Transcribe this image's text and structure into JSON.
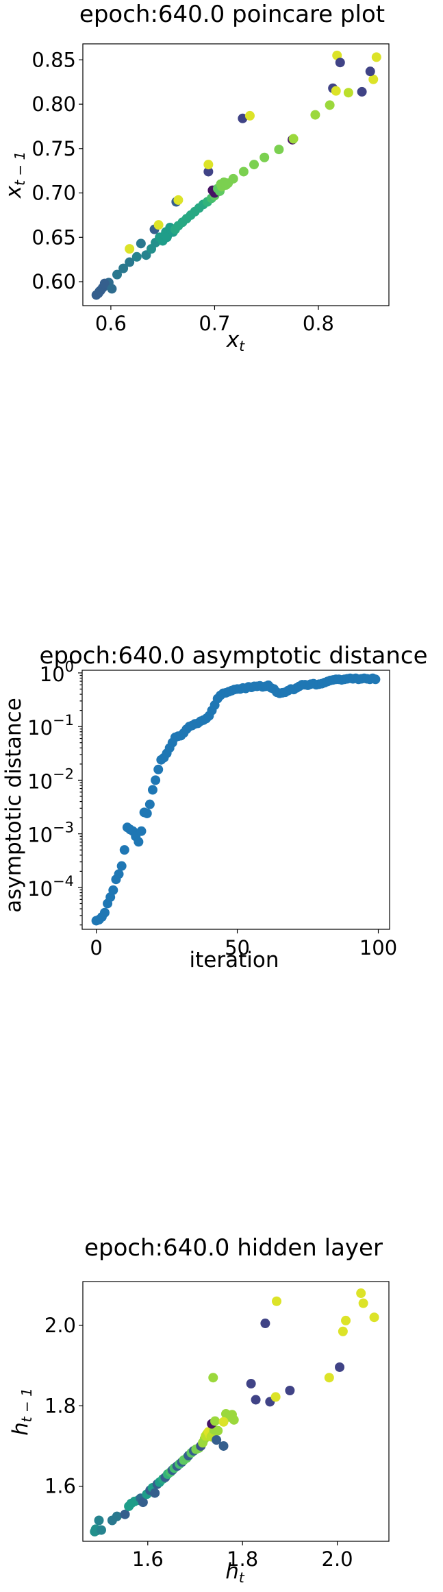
{
  "chart_data": [
    {
      "type": "scatter",
      "title": "epoch:640.0 poincare plot",
      "xlabel": "x_t",
      "ylabel": "x_{t-1}",
      "xlim": [
        0.573,
        0.868
      ],
      "ylim": [
        0.573,
        0.868
      ],
      "xticks": [
        0.6,
        0.7,
        0.8
      ],
      "yticks": [
        0.6,
        0.65,
        0.7,
        0.75,
        0.8,
        0.85
      ],
      "xtick_labels": [
        "0.6",
        "0.7",
        "0.8"
      ],
      "ytick_labels": [
        "0.60",
        "0.65",
        "0.70",
        "0.75",
        "0.80",
        "0.85"
      ],
      "colormap": "viridis",
      "points": [
        {
          "x": 0.586,
          "y": 0.585,
          "c": 0.3
        },
        {
          "x": 0.588,
          "y": 0.587,
          "c": 0.3
        },
        {
          "x": 0.589,
          "y": 0.589,
          "c": 0.3
        },
        {
          "x": 0.59,
          "y": 0.59,
          "c": 0.3
        },
        {
          "x": 0.592,
          "y": 0.593,
          "c": 0.3
        },
        {
          "x": 0.595,
          "y": 0.596,
          "c": 0.3
        },
        {
          "x": 0.598,
          "y": 0.599,
          "c": 0.35
        },
        {
          "x": 0.594,
          "y": 0.598,
          "c": 0.3
        },
        {
          "x": 0.601,
          "y": 0.592,
          "c": 0.35
        },
        {
          "x": 0.606,
          "y": 0.608,
          "c": 0.4
        },
        {
          "x": 0.612,
          "y": 0.615,
          "c": 0.4
        },
        {
          "x": 0.618,
          "y": 0.622,
          "c": 0.4
        },
        {
          "x": 0.625,
          "y": 0.628,
          "c": 0.45
        },
        {
          "x": 0.618,
          "y": 0.637,
          "c": 0.95
        },
        {
          "x": 0.629,
          "y": 0.643,
          "c": 0.4
        },
        {
          "x": 0.634,
          "y": 0.63,
          "c": 0.45
        },
        {
          "x": 0.639,
          "y": 0.637,
          "c": 0.5
        },
        {
          "x": 0.643,
          "y": 0.644,
          "c": 0.5
        },
        {
          "x": 0.647,
          "y": 0.65,
          "c": 0.55
        },
        {
          "x": 0.642,
          "y": 0.659,
          "c": 0.3
        },
        {
          "x": 0.646,
          "y": 0.664,
          "c": 0.95
        },
        {
          "x": 0.65,
          "y": 0.646,
          "c": 0.55
        },
        {
          "x": 0.652,
          "y": 0.652,
          "c": 0.55
        },
        {
          "x": 0.653,
          "y": 0.656,
          "c": 0.55
        },
        {
          "x": 0.655,
          "y": 0.653,
          "c": 0.55
        },
        {
          "x": 0.656,
          "y": 0.658,
          "c": 0.55
        },
        {
          "x": 0.657,
          "y": 0.661,
          "c": 0.55
        },
        {
          "x": 0.658,
          "y": 0.66,
          "c": 0.55
        },
        {
          "x": 0.654,
          "y": 0.65,
          "c": 0.55
        },
        {
          "x": 0.66,
          "y": 0.656,
          "c": 0.55
        },
        {
          "x": 0.662,
          "y": 0.659,
          "c": 0.6
        },
        {
          "x": 0.665,
          "y": 0.663,
          "c": 0.6
        },
        {
          "x": 0.669,
          "y": 0.667,
          "c": 0.6
        },
        {
          "x": 0.673,
          "y": 0.671,
          "c": 0.6
        },
        {
          "x": 0.677,
          "y": 0.675,
          "c": 0.6
        },
        {
          "x": 0.681,
          "y": 0.679,
          "c": 0.6
        },
        {
          "x": 0.685,
          "y": 0.683,
          "c": 0.6
        },
        {
          "x": 0.689,
          "y": 0.687,
          "c": 0.6
        },
        {
          "x": 0.663,
          "y": 0.69,
          "c": 0.3
        },
        {
          "x": 0.665,
          "y": 0.692,
          "c": 0.95
        },
        {
          "x": 0.693,
          "y": 0.69,
          "c": 0.65
        },
        {
          "x": 0.697,
          "y": 0.694,
          "c": 0.7
        },
        {
          "x": 0.7,
          "y": 0.697,
          "c": 0.75
        },
        {
          "x": 0.698,
          "y": 0.703,
          "c": 0.05
        },
        {
          "x": 0.7,
          "y": 0.7,
          "c": 0.05
        },
        {
          "x": 0.703,
          "y": 0.705,
          "c": 0.75
        },
        {
          "x": 0.705,
          "y": 0.702,
          "c": 0.75
        },
        {
          "x": 0.707,
          "y": 0.707,
          "c": 0.8
        },
        {
          "x": 0.706,
          "y": 0.71,
          "c": 0.8
        },
        {
          "x": 0.709,
          "y": 0.712,
          "c": 0.8
        },
        {
          "x": 0.711,
          "y": 0.709,
          "c": 0.8
        },
        {
          "x": 0.713,
          "y": 0.711,
          "c": 0.8
        },
        {
          "x": 0.694,
          "y": 0.724,
          "c": 0.2
        },
        {
          "x": 0.694,
          "y": 0.732,
          "c": 0.95
        },
        {
          "x": 0.718,
          "y": 0.716,
          "c": 0.8
        },
        {
          "x": 0.728,
          "y": 0.724,
          "c": 0.8
        },
        {
          "x": 0.738,
          "y": 0.732,
          "c": 0.8
        },
        {
          "x": 0.748,
          "y": 0.74,
          "c": 0.8
        },
        {
          "x": 0.762,
          "y": 0.749,
          "c": 0.8
        },
        {
          "x": 0.775,
          "y": 0.76,
          "c": 0.05
        },
        {
          "x": 0.776,
          "y": 0.761,
          "c": 0.85
        },
        {
          "x": 0.727,
          "y": 0.784,
          "c": 0.2
        },
        {
          "x": 0.734,
          "y": 0.787,
          "c": 0.95
        },
        {
          "x": 0.797,
          "y": 0.788,
          "c": 0.85
        },
        {
          "x": 0.811,
          "y": 0.799,
          "c": 0.85
        },
        {
          "x": 0.814,
          "y": 0.818,
          "c": 0.2
        },
        {
          "x": 0.817,
          "y": 0.815,
          "c": 0.95
        },
        {
          "x": 0.829,
          "y": 0.813,
          "c": 0.9
        },
        {
          "x": 0.842,
          "y": 0.814,
          "c": 0.2
        },
        {
          "x": 0.853,
          "y": 0.828,
          "c": 0.95
        },
        {
          "x": 0.85,
          "y": 0.837,
          "c": 0.2
        },
        {
          "x": 0.818,
          "y": 0.855,
          "c": 0.95
        },
        {
          "x": 0.821,
          "y": 0.847,
          "c": 0.2
        },
        {
          "x": 0.856,
          "y": 0.853,
          "c": 0.95
        }
      ]
    },
    {
      "type": "scatter",
      "title": "epoch:640.0 asymptotic distance",
      "xlabel": "iteration",
      "ylabel": "asymptotic distance",
      "xlim": [
        -5,
        104
      ],
      "ylim_log10": [
        -4.78,
        0.05
      ],
      "yscale": "log",
      "xticks": [
        0,
        50,
        100
      ],
      "xtick_labels": [
        "0",
        "50",
        "100"
      ],
      "yticks_log10": [
        -4,
        -3,
        -2,
        -1,
        0
      ],
      "ytick_labels": [
        "10^-4",
        "10^-3",
        "10^-2",
        "10^-1",
        "10^0"
      ],
      "color": "#1f77b4",
      "x": [
        0,
        1,
        2,
        3,
        4,
        5,
        6,
        7,
        8,
        9,
        10,
        11,
        12,
        13,
        14,
        15,
        16,
        17,
        18,
        19,
        20,
        21,
        22,
        23,
        24,
        25,
        26,
        27,
        28,
        29,
        30,
        31,
        32,
        33,
        34,
        35,
        36,
        37,
        38,
        39,
        40,
        41,
        42,
        43,
        44,
        45,
        46,
        47,
        48,
        49,
        50,
        51,
        52,
        53,
        54,
        55,
        56,
        57,
        58,
        59,
        60,
        61,
        62,
        63,
        64,
        65,
        66,
        67,
        68,
        69,
        70,
        71,
        72,
        73,
        74,
        75,
        76,
        77,
        78,
        79,
        80,
        81,
        82,
        83,
        84,
        85,
        86,
        87,
        88,
        89,
        90,
        91,
        92,
        93,
        94,
        95,
        96,
        97,
        98,
        99
      ],
      "y_log10": [
        -4.62,
        -4.6,
        -4.55,
        -4.47,
        -4.3,
        -4.18,
        -4.05,
        -3.85,
        -3.75,
        -3.6,
        -3.3,
        -2.88,
        -2.92,
        -2.95,
        -3.05,
        -3.15,
        -2.95,
        -2.6,
        -2.62,
        -2.45,
        -2.18,
        -2.0,
        -1.8,
        -1.62,
        -1.58,
        -1.5,
        -1.4,
        -1.3,
        -1.2,
        -1.18,
        -1.17,
        -1.12,
        -1.05,
        -1.0,
        -0.98,
        -0.95,
        -0.94,
        -0.9,
        -0.88,
        -0.85,
        -0.8,
        -0.7,
        -0.6,
        -0.48,
        -0.42,
        -0.38,
        -0.37,
        -0.35,
        -0.33,
        -0.31,
        -0.3,
        -0.3,
        -0.28,
        -0.29,
        -0.26,
        -0.27,
        -0.25,
        -0.25,
        -0.24,
        -0.26,
        -0.25,
        -0.23,
        -0.28,
        -0.3,
        -0.36,
        -0.38,
        -0.37,
        -0.36,
        -0.33,
        -0.3,
        -0.31,
        -0.28,
        -0.25,
        -0.22,
        -0.22,
        -0.23,
        -0.21,
        -0.2,
        -0.22,
        -0.21,
        -0.2,
        -0.18,
        -0.16,
        -0.14,
        -0.13,
        -0.12,
        -0.12,
        -0.13,
        -0.12,
        -0.11,
        -0.1,
        -0.11,
        -0.1,
        -0.12,
        -0.11,
        -0.1,
        -0.11,
        -0.12,
        -0.1,
        -0.12
      ]
    },
    {
      "type": "scatter",
      "title": "epoch:640.0 hidden layer",
      "xlabel": "h_t",
      "ylabel": "h_{t-1}",
      "xlim": [
        1.463,
        2.109
      ],
      "ylim": [
        1.463,
        2.109
      ],
      "xticks": [
        1.6,
        1.8,
        2.0
      ],
      "yticks": [
        1.6,
        1.8,
        2.0
      ],
      "xtick_labels": [
        "1.6",
        "1.8",
        "2.0"
      ],
      "ytick_labels": [
        "1.6",
        "1.8",
        "2.0"
      ],
      "colormap": "viridis",
      "points": [
        {
          "x": 1.488,
          "y": 1.487,
          "c": 0.5
        },
        {
          "x": 1.49,
          "y": 1.493,
          "c": 0.5
        },
        {
          "x": 1.493,
          "y": 1.49,
          "c": 0.5
        },
        {
          "x": 1.502,
          "y": 1.491,
          "c": 0.45
        },
        {
          "x": 1.497,
          "y": 1.515,
          "c": 0.45
        },
        {
          "x": 1.525,
          "y": 1.515,
          "c": 0.4
        },
        {
          "x": 1.535,
          "y": 1.525,
          "c": 0.4
        },
        {
          "x": 1.552,
          "y": 1.53,
          "c": 0.3
        },
        {
          "x": 1.56,
          "y": 1.55,
          "c": 0.55
        },
        {
          "x": 1.565,
          "y": 1.557,
          "c": 0.55
        },
        {
          "x": 1.572,
          "y": 1.562,
          "c": 0.55
        },
        {
          "x": 1.58,
          "y": 1.565,
          "c": 0.55
        },
        {
          "x": 1.585,
          "y": 1.57,
          "c": 0.35
        },
        {
          "x": 1.59,
          "y": 1.56,
          "c": 0.3
        },
        {
          "x": 1.598,
          "y": 1.58,
          "c": 0.55
        },
        {
          "x": 1.605,
          "y": 1.59,
          "c": 0.3
        },
        {
          "x": 1.61,
          "y": 1.596,
          "c": 0.55
        },
        {
          "x": 1.615,
          "y": 1.583,
          "c": 0.3
        },
        {
          "x": 1.62,
          "y": 1.605,
          "c": 0.3
        },
        {
          "x": 1.625,
          "y": 1.61,
          "c": 0.55
        },
        {
          "x": 1.632,
          "y": 1.618,
          "c": 0.6
        },
        {
          "x": 1.637,
          "y": 1.622,
          "c": 0.3
        },
        {
          "x": 1.642,
          "y": 1.63,
          "c": 0.65
        },
        {
          "x": 1.648,
          "y": 1.635,
          "c": 0.7
        },
        {
          "x": 1.652,
          "y": 1.64,
          "c": 0.3
        },
        {
          "x": 1.656,
          "y": 1.645,
          "c": 0.7
        },
        {
          "x": 1.662,
          "y": 1.65,
          "c": 0.3
        },
        {
          "x": 1.667,
          "y": 1.655,
          "c": 0.7
        },
        {
          "x": 1.672,
          "y": 1.66,
          "c": 0.3
        },
        {
          "x": 1.676,
          "y": 1.665,
          "c": 0.75
        },
        {
          "x": 1.682,
          "y": 1.67,
          "c": 0.75
        },
        {
          "x": 1.686,
          "y": 1.676,
          "c": 0.3
        },
        {
          "x": 1.692,
          "y": 1.683,
          "c": 0.75
        },
        {
          "x": 1.697,
          "y": 1.688,
          "c": 0.3
        },
        {
          "x": 1.702,
          "y": 1.692,
          "c": 0.8
        },
        {
          "x": 1.708,
          "y": 1.695,
          "c": 0.8
        },
        {
          "x": 1.712,
          "y": 1.7,
          "c": 0.25
        },
        {
          "x": 1.716,
          "y": 1.708,
          "c": 0.85
        },
        {
          "x": 1.72,
          "y": 1.718,
          "c": 0.85
        },
        {
          "x": 1.722,
          "y": 1.725,
          "c": 0.9
        },
        {
          "x": 1.725,
          "y": 1.73,
          "c": 0.9
        },
        {
          "x": 1.728,
          "y": 1.735,
          "c": 0.95
        },
        {
          "x": 1.731,
          "y": 1.728,
          "c": 0.95
        },
        {
          "x": 1.734,
          "y": 1.723,
          "c": 0.9
        },
        {
          "x": 1.738,
          "y": 1.73,
          "c": 0.9
        },
        {
          "x": 1.74,
          "y": 1.74,
          "c": 0.85
        },
        {
          "x": 1.735,
          "y": 1.755,
          "c": 0.05
        },
        {
          "x": 1.742,
          "y": 1.762,
          "c": 0.85
        },
        {
          "x": 1.748,
          "y": 1.738,
          "c": 0.85
        },
        {
          "x": 1.745,
          "y": 1.715,
          "c": 0.3
        },
        {
          "x": 1.76,
          "y": 1.7,
          "c": 0.3
        },
        {
          "x": 1.765,
          "y": 1.78,
          "c": 0.85
        },
        {
          "x": 1.772,
          "y": 1.772,
          "c": 0.85
        },
        {
          "x": 1.778,
          "y": 1.778,
          "c": 0.85
        },
        {
          "x": 1.782,
          "y": 1.765,
          "c": 0.85
        },
        {
          "x": 1.76,
          "y": 1.76,
          "c": 0.95
        },
        {
          "x": 1.738,
          "y": 1.87,
          "c": 0.85
        },
        {
          "x": 1.818,
          "y": 1.855,
          "c": 0.2
        },
        {
          "x": 1.828,
          "y": 1.815,
          "c": 0.2
        },
        {
          "x": 1.848,
          "y": 2.005,
          "c": 0.2
        },
        {
          "x": 1.858,
          "y": 1.81,
          "c": 0.2
        },
        {
          "x": 1.87,
          "y": 1.822,
          "c": 0.95
        },
        {
          "x": 1.872,
          "y": 2.06,
          "c": 0.95
        },
        {
          "x": 1.9,
          "y": 1.838,
          "c": 0.2
        },
        {
          "x": 1.983,
          "y": 1.87,
          "c": 0.95
        },
        {
          "x": 2.005,
          "y": 1.896,
          "c": 0.2
        },
        {
          "x": 2.012,
          "y": 1.985,
          "c": 0.95
        },
        {
          "x": 2.018,
          "y": 2.012,
          "c": 0.95
        },
        {
          "x": 2.05,
          "y": 2.08,
          "c": 0.95
        },
        {
          "x": 2.055,
          "y": 2.055,
          "c": 0.95
        },
        {
          "x": 2.078,
          "y": 2.02,
          "c": 0.95
        }
      ]
    }
  ]
}
